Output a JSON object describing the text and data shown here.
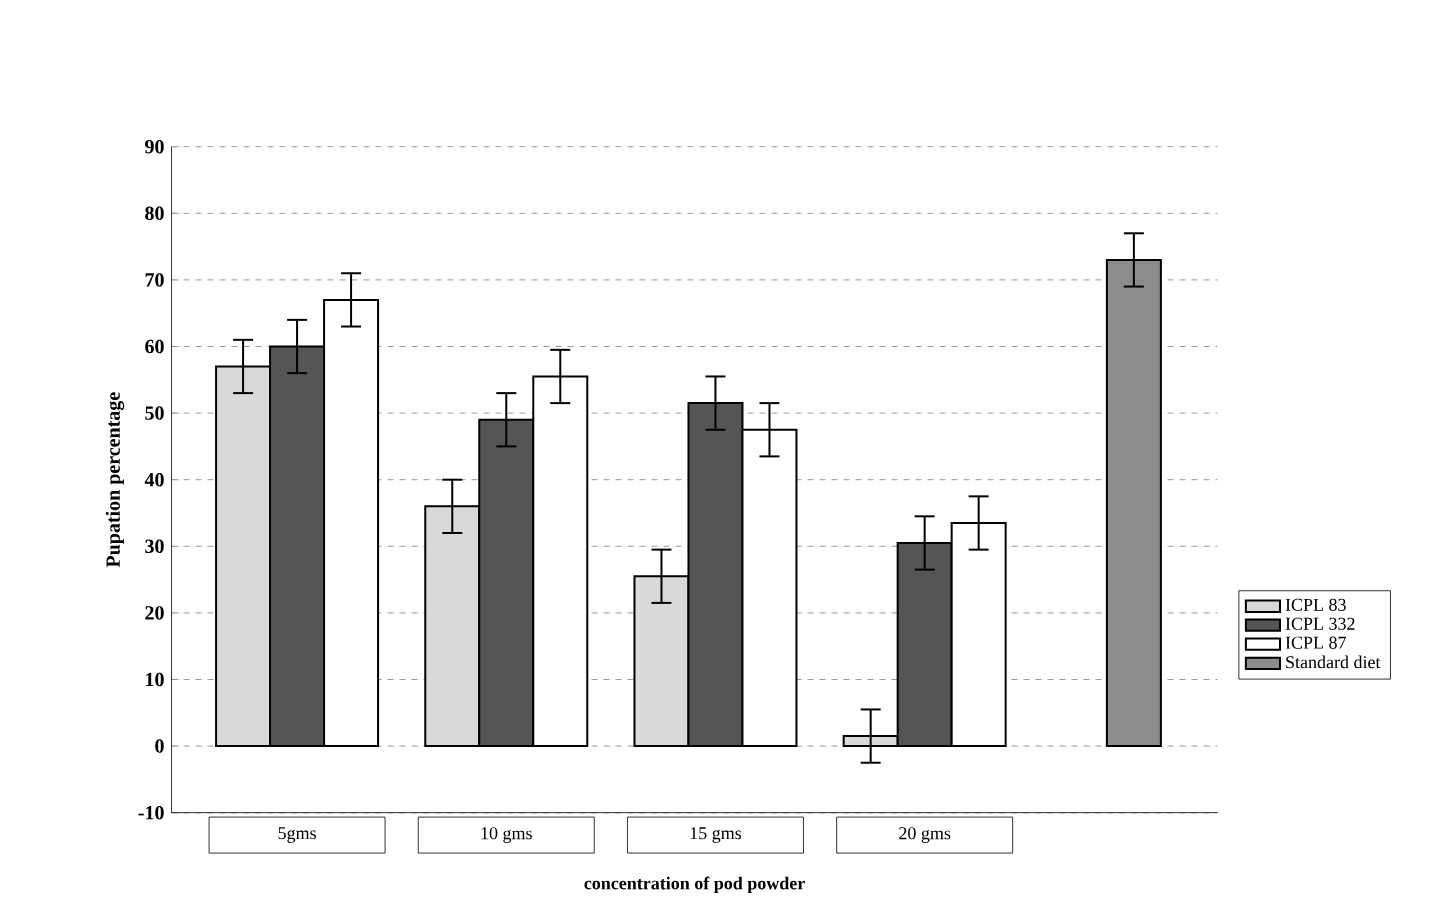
{
  "chart_data": {
    "type": "bar",
    "categories": [
      "5gms",
      "10 gms",
      "15 gms",
      "20 gms",
      null
    ],
    "xlabel": "concentration of pod powder",
    "ylabel": "Pupation percentage",
    "ylim": [
      -10,
      90
    ],
    "yticks": [
      -10,
      0,
      10,
      20,
      30,
      40,
      50,
      60,
      70,
      80,
      90
    ],
    "grid": "y",
    "legend": "right",
    "series": [
      {
        "name": "ICPL 83",
        "color": "#d9d9d9",
        "values": [
          57,
          36,
          25.5,
          1.5,
          null
        ],
        "errors": [
          4,
          4,
          4,
          4,
          null
        ]
      },
      {
        "name": "ICPL 332",
        "color": "#555555",
        "values": [
          60,
          49,
          51.5,
          30.5,
          null
        ],
        "errors": [
          4,
          4,
          4,
          4,
          null
        ]
      },
      {
        "name": "ICPL 87",
        "color": "#ffffff",
        "values": [
          67,
          55.5,
          47.5,
          33.5,
          null
        ],
        "errors": [
          4,
          4,
          4,
          4,
          null
        ]
      },
      {
        "name": "Standard diet",
        "color": "#8c8c8c",
        "values": [
          null,
          null,
          null,
          null,
          73
        ],
        "errors": [
          null,
          null,
          null,
          null,
          4
        ]
      }
    ]
  }
}
